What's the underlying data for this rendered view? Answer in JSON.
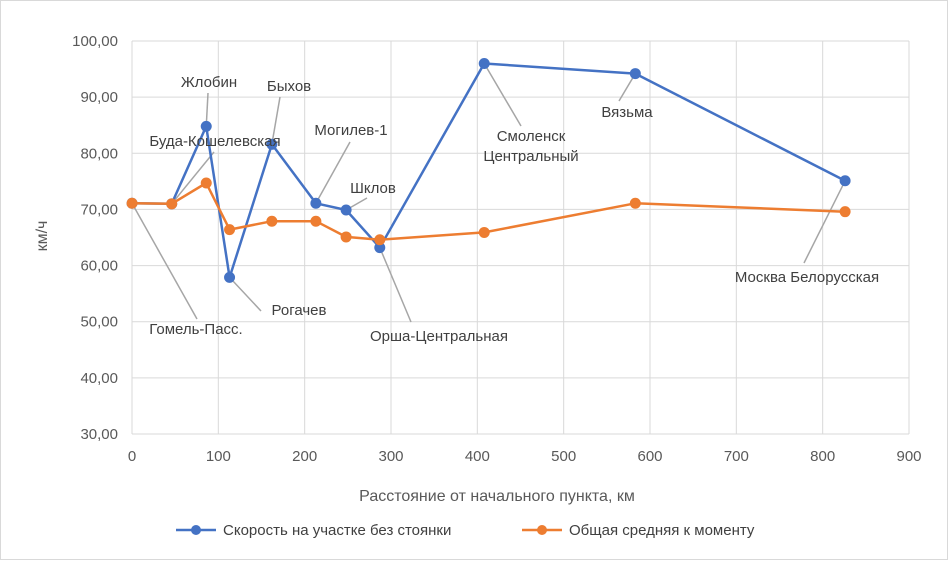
{
  "chart_data": {
    "type": "line",
    "xlabel": "Расстояние от начального пункта, км",
    "ylabel": "км/ч",
    "xlim": [
      0,
      900
    ],
    "ylim": [
      30,
      100
    ],
    "x_ticks": [
      "0",
      "100",
      "200",
      "300",
      "400",
      "500",
      "600",
      "700",
      "800",
      "900"
    ],
    "y_ticks": [
      "30,00",
      "40,00",
      "50,00",
      "60,00",
      "70,00",
      "80,00",
      "90,00",
      "100,00"
    ],
    "grid": true,
    "legend_position": "bottom",
    "series": [
      {
        "name": "Скорость на участке без стоянки",
        "color": "#4472c4",
        "x": [
          0,
          46,
          86,
          113,
          162,
          213,
          248,
          287,
          408,
          583,
          826
        ],
        "y": [
          71.1,
          71.0,
          84.8,
          57.9,
          81.6,
          71.1,
          69.9,
          63.2,
          96.0,
          94.2,
          75.1
        ]
      },
      {
        "name": "Общая средняя к моменту",
        "color": "#ed7d31",
        "x": [
          0,
          46,
          86,
          113,
          162,
          213,
          248,
          287,
          408,
          583,
          826
        ],
        "y": [
          71.1,
          71.0,
          74.7,
          66.4,
          67.9,
          67.9,
          65.1,
          64.6,
          65.9,
          71.1,
          69.6
        ]
      }
    ],
    "annotations": [
      {
        "text": "Гомель-Пасс.",
        "point": 0
      },
      {
        "text": "Буда-Кошелевская",
        "point": 1
      },
      {
        "text": "Жлобин",
        "point": 2
      },
      {
        "text": "Рогачев",
        "point": 3
      },
      {
        "text": "Быхов",
        "point": 4
      },
      {
        "text": "Могилев-1",
        "point": 5
      },
      {
        "text": "Шклов",
        "point": 6
      },
      {
        "text": "Орша-Центральная",
        "point": 7
      },
      {
        "text": "Смоленск Центральный",
        "point": 8
      },
      {
        "text": "Вязьма",
        "point": 9
      },
      {
        "text": "Москва Белорусская",
        "point": 10
      }
    ]
  }
}
